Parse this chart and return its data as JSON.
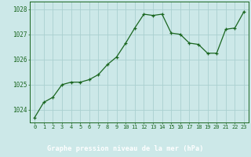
{
  "x": [
    0,
    1,
    2,
    3,
    4,
    5,
    6,
    7,
    8,
    9,
    10,
    11,
    12,
    13,
    14,
    15,
    16,
    17,
    18,
    19,
    20,
    21,
    22,
    23
  ],
  "y": [
    1023.7,
    1024.3,
    1024.5,
    1025.0,
    1025.1,
    1025.1,
    1025.2,
    1025.4,
    1025.8,
    1026.1,
    1026.65,
    1027.25,
    1027.8,
    1027.75,
    1027.8,
    1027.05,
    1027.0,
    1026.65,
    1026.6,
    1026.25,
    1026.25,
    1027.2,
    1027.25,
    1027.9
  ],
  "ylim": [
    1023.5,
    1028.3
  ],
  "yticks": [
    1024,
    1025,
    1026,
    1027,
    1028
  ],
  "xticks": [
    0,
    1,
    2,
    3,
    4,
    5,
    6,
    7,
    8,
    9,
    10,
    11,
    12,
    13,
    14,
    15,
    16,
    17,
    18,
    19,
    20,
    21,
    22,
    23
  ],
  "line_color": "#1a6620",
  "marker_color": "#1a6620",
  "bg_color": "#cce8e8",
  "grid_color": "#aad0d0",
  "xlabel": "Graphe pression niveau de la mer (hPa)",
  "xlabel_color": "#ffffff",
  "xlabel_bg": "#2d6e2d",
  "tick_color": "#1a6620",
  "axis_color": "#1a6620",
  "tick_fontsize": 5.0,
  "xlabel_fontsize": 6.2
}
